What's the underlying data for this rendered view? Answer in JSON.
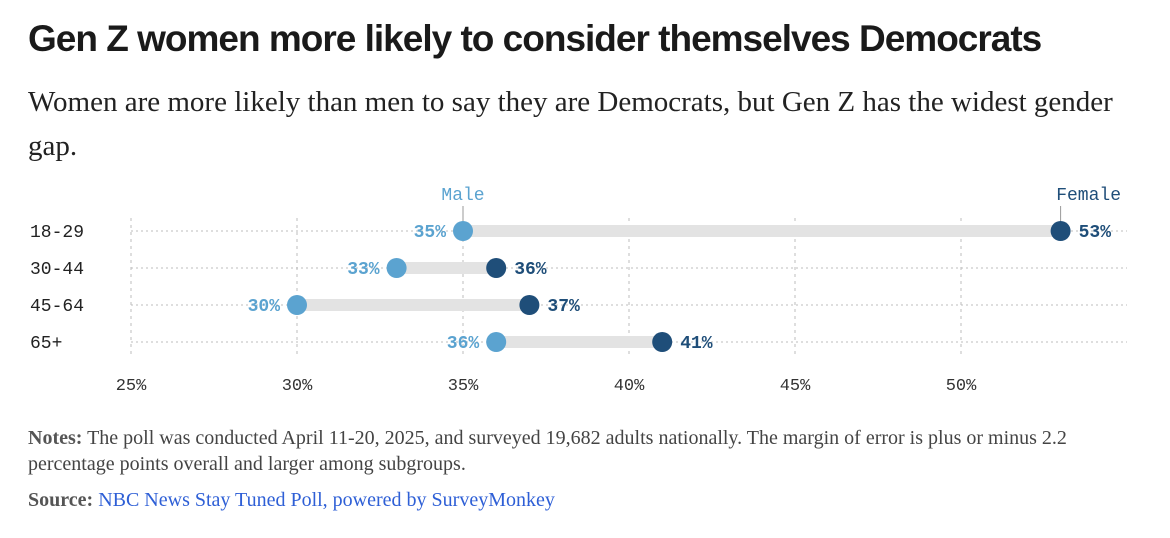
{
  "title": "Gen Z women more likely to consider themselves Democrats",
  "subtitle": "Women are more likely than men to say they are Democrats, but Gen Z has the widest gender gap.",
  "notes": {
    "label": "Notes:",
    "text": "The poll was conducted April 11-20, 2025, and surveyed 19,682 adults nationally. The margin of error is plus or minus 2.2 percentage points overall and larger among subgroups."
  },
  "source": {
    "label": "Source:",
    "link_text": "NBC News Stay Tuned Poll, powered by SurveyMonkey"
  },
  "colors": {
    "male": "#5ba3d0",
    "female": "#1f4e79",
    "bar": "#e3e3e3",
    "grid": "#bdbdbd"
  },
  "chart_data": {
    "type": "dumbbell",
    "categories": [
      "18-29",
      "30-44",
      "45-64",
      "65+"
    ],
    "series": [
      {
        "name": "Male",
        "values": [
          35,
          33,
          30,
          36
        ],
        "labels": [
          "35%",
          "33%",
          "30%",
          "36%"
        ]
      },
      {
        "name": "Female",
        "values": [
          53,
          36,
          37,
          41
        ],
        "labels": [
          "53%",
          "36%",
          "37%",
          "41%"
        ]
      }
    ],
    "xlim": [
      25,
      55
    ],
    "xticks": [
      25,
      30,
      35,
      40,
      45,
      50
    ],
    "xtick_labels": [
      "25%",
      "30%",
      "35%",
      "40%",
      "45%",
      "50%"
    ],
    "grid": true,
    "legend": "direct labels above first row"
  }
}
